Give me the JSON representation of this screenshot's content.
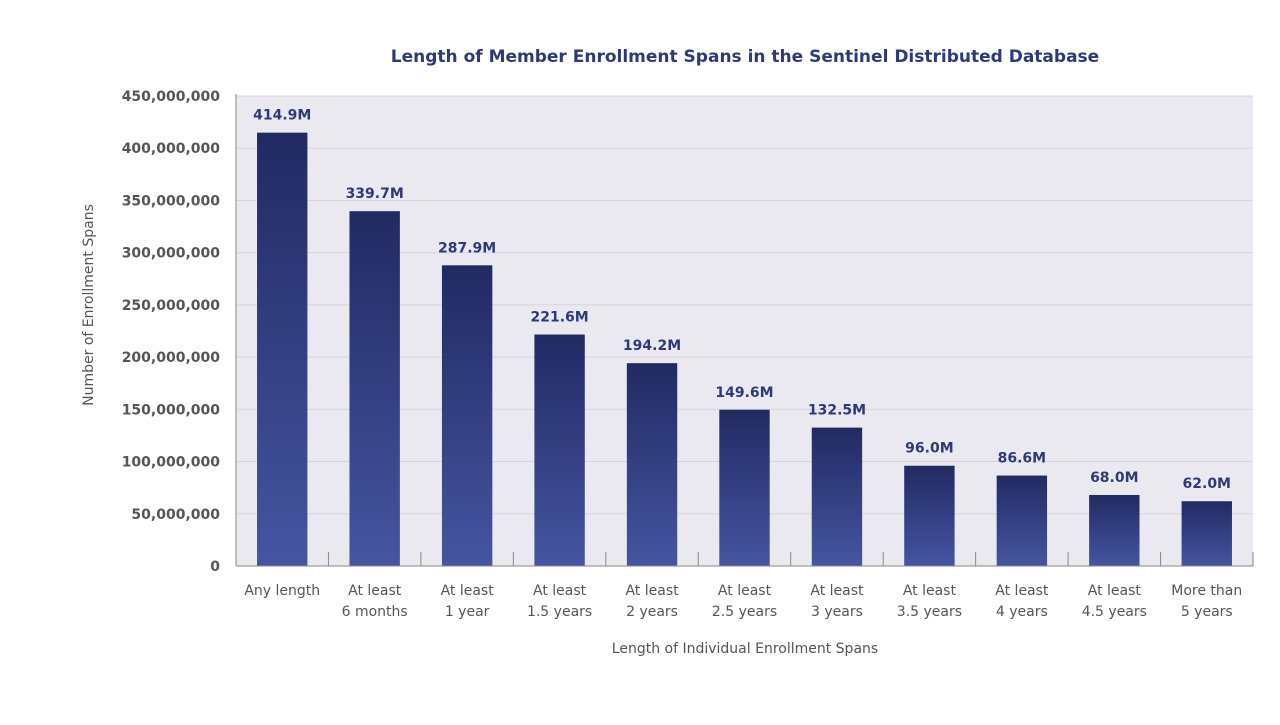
{
  "chart_data": {
    "type": "bar",
    "title": "Length of Member Enrollment  Spans in the Sentinel Distributed Database",
    "xlabel": "Length of Individual Enrollment Spans",
    "ylabel": "Number of Enrollment Spans",
    "ylim": [
      0,
      450000000
    ],
    "yticks": [
      {
        "value": 0,
        "label": "0"
      },
      {
        "value": 50000000,
        "label": "50,000,000"
      },
      {
        "value": 100000000,
        "label": "100,000,000"
      },
      {
        "value": 150000000,
        "label": "150,000,000"
      },
      {
        "value": 200000000,
        "label": "200,000,000"
      },
      {
        "value": 250000000,
        "label": "250,000,000"
      },
      {
        "value": 300000000,
        "label": "300,000,000"
      },
      {
        "value": 350000000,
        "label": "350,000,000"
      },
      {
        "value": 400000000,
        "label": "400,000,000"
      },
      {
        "value": 450000000,
        "label": "450,000,000"
      }
    ],
    "categories": [
      [
        "Any length"
      ],
      [
        "At least",
        "6 months"
      ],
      [
        "At least",
        "1 year"
      ],
      [
        "At least",
        "1.5 years"
      ],
      [
        "At least",
        "2 years"
      ],
      [
        "At least",
        "2.5 years"
      ],
      [
        "At least",
        "3 years"
      ],
      [
        "At least",
        "3.5 years"
      ],
      [
        "At least",
        "4 years"
      ],
      [
        "At least",
        "4.5 years"
      ],
      [
        "More than",
        "5 years"
      ]
    ],
    "values": [
      414900000,
      339700000,
      287900000,
      221600000,
      194200000,
      149600000,
      132500000,
      96000000,
      86600000,
      68000000,
      62000000
    ],
    "data_labels": [
      "414.9M",
      "339.7M",
      "287.9M",
      "221.6M",
      "194.2M",
      "149.6M",
      "132.5M",
      "96.0M",
      "86.6M",
      "68.0M",
      "62.0M"
    ],
    "grid": true,
    "legend": "none",
    "colors": {
      "bar_top": "#222a63",
      "bar_bottom": "#4555a0",
      "plot_background": "#e9e9ef",
      "gridline": "#d4d4dc",
      "axis": "#888888",
      "title": "#2e3a78",
      "data_label": "#2e3a78",
      "tick_text": "#555555"
    }
  }
}
